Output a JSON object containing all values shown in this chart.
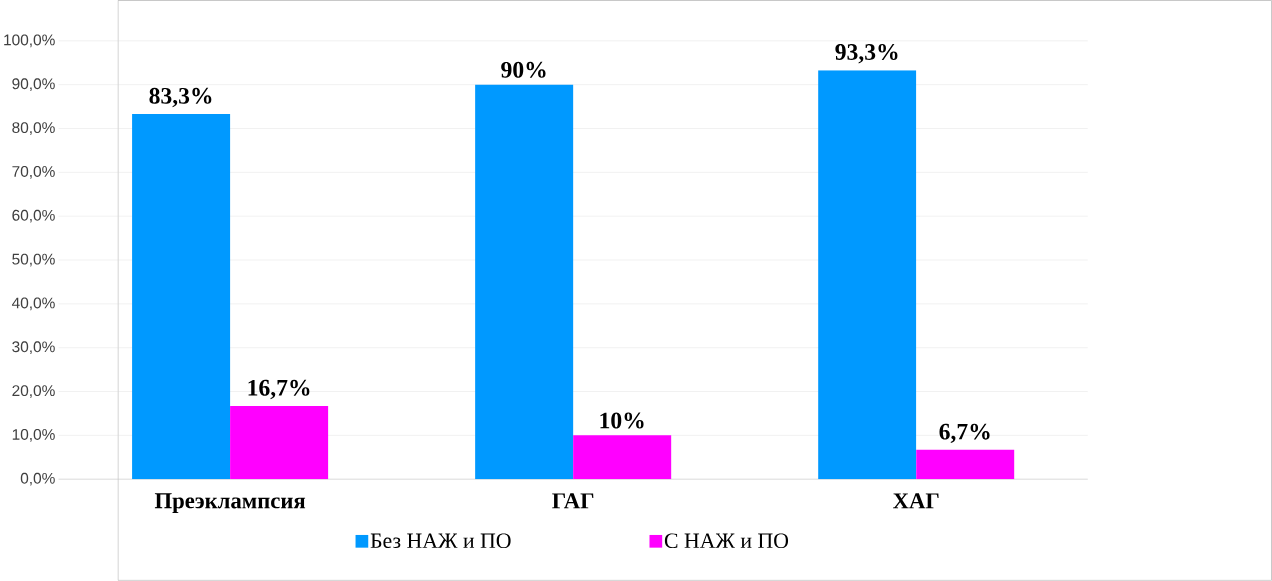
{
  "chart_data": {
    "type": "bar",
    "categories": [
      "Преэклампсия",
      "ГАГ",
      "ХАГ"
    ],
    "series": [
      {
        "name": "Без НАЖ и ПО",
        "color": "#0099ff",
        "values": [
          83.3,
          90,
          93.3
        ],
        "value_labels": [
          "83,3%",
          "90%",
          "93,3%"
        ]
      },
      {
        "name": "С НАЖ и ПО",
        "color": "#ff00ff",
        "values": [
          16.7,
          10,
          6.7
        ],
        "value_labels": [
          "16,7%",
          "10%",
          "6,7%"
        ]
      }
    ],
    "ylim": [
      0,
      100
    ],
    "yticks": [
      {
        "value": 0,
        "label": "0,0%"
      },
      {
        "value": 10,
        "label": "10,0%"
      },
      {
        "value": 20,
        "label": "20,0%"
      },
      {
        "value": 30,
        "label": "30,0%"
      },
      {
        "value": 40,
        "label": "40,0%"
      },
      {
        "value": 50,
        "label": "50,0%"
      },
      {
        "value": 60,
        "label": "60,0%"
      },
      {
        "value": 70,
        "label": "70,0%"
      },
      {
        "value": 80,
        "label": "80,0%"
      },
      {
        "value": 90,
        "label": "90,0%"
      },
      {
        "value": 100,
        "label": "100,0%"
      }
    ],
    "grid": "y",
    "legend": "bottom"
  }
}
